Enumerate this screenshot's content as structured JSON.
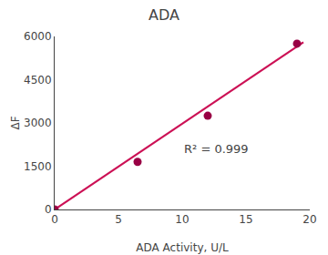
{
  "chart_data": {
    "type": "scatter",
    "title": "ADA",
    "xlabel": "ADA Activity, U/L",
    "ylabel": "ΔF",
    "annotations": [
      "R² = 0.999"
    ],
    "series": [
      {
        "type": "line",
        "x": [
          0,
          19.5
        ],
        "values": [
          0,
          5800
        ],
        "color": "#cc1155"
      },
      {
        "type": "scatter",
        "x": [
          0,
          6.5,
          12,
          19
        ],
        "values": [
          0,
          1650,
          3250,
          5750
        ],
        "color": "#990044"
      }
    ],
    "xlim": [
      0,
      20
    ],
    "xticks": [
      0,
      5,
      10,
      15,
      20
    ],
    "ylim": [
      0,
      6000
    ],
    "yticks": [
      0,
      1500,
      3000,
      4500,
      6000
    ],
    "grid": false
  }
}
